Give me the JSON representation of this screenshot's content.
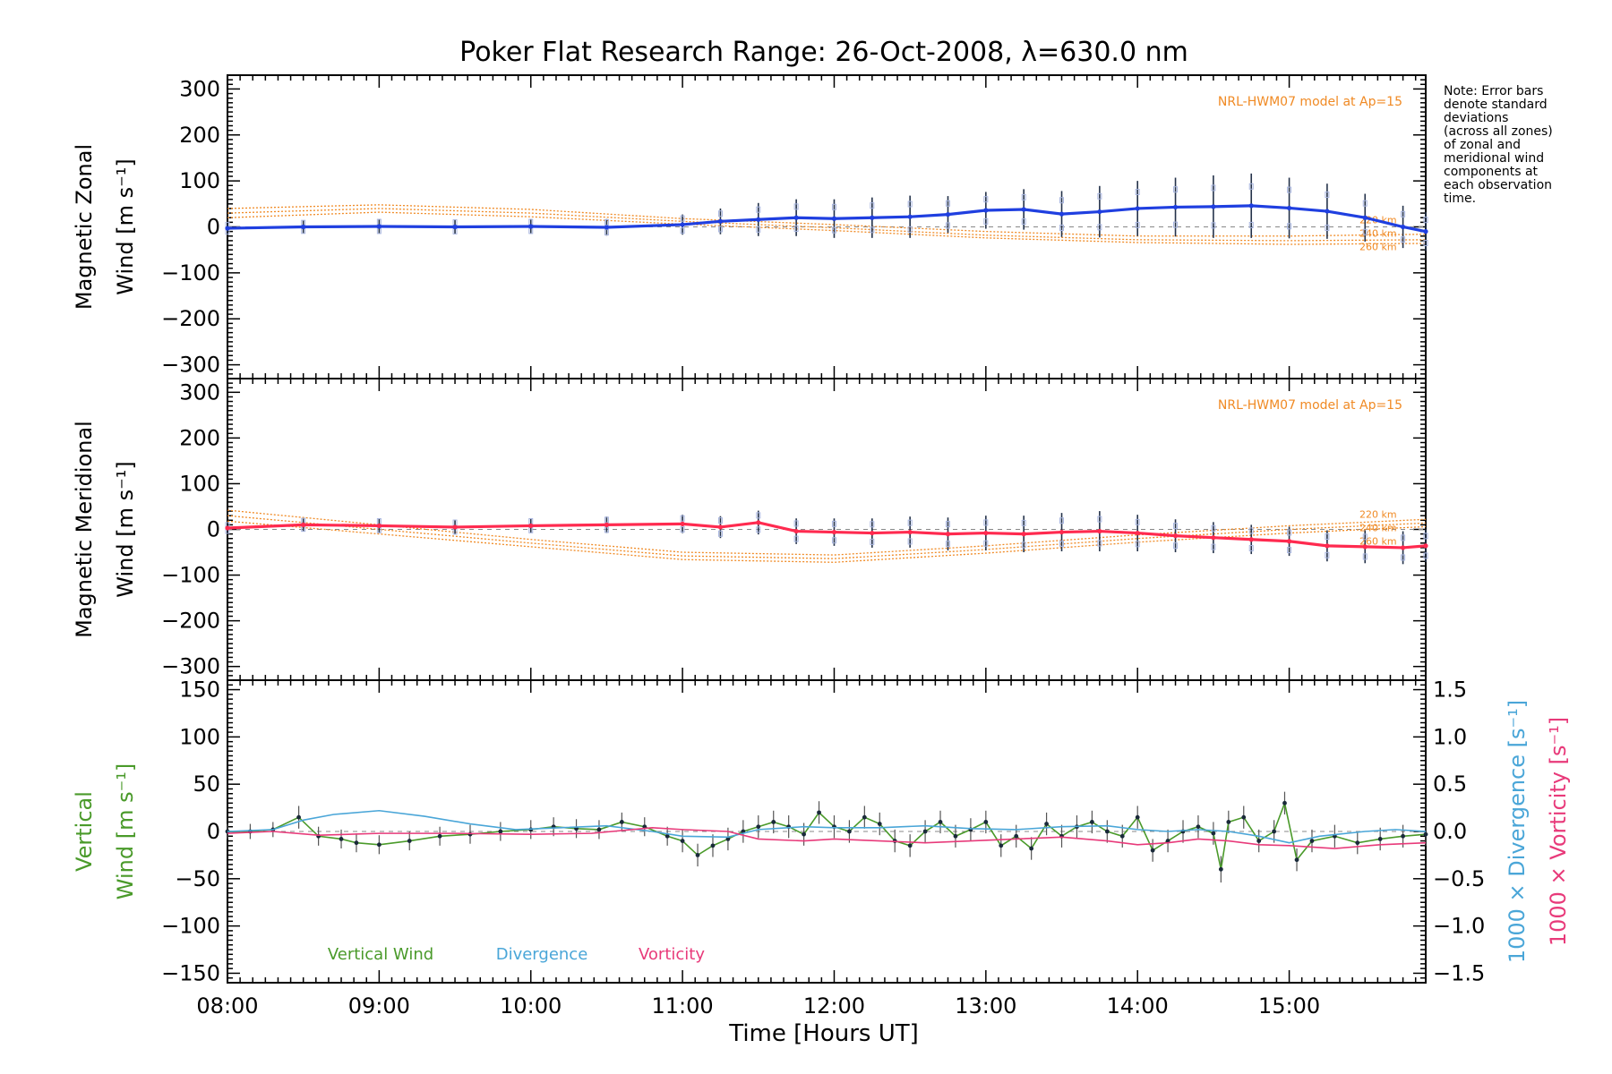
{
  "title": "Poker Flat Research Range: 26-Oct-2008, λ=630.0 nm",
  "colors": {
    "zonal": "#1f3fe0",
    "meridional": "#ff2a4f",
    "vertical": "#4a9a2a",
    "divergence": "#4aa6d8",
    "vorticity": "#e83a7a",
    "model": "#f08a24",
    "model_ci": "#f7c98f",
    "error_bar": "#24324a",
    "scatter": "#a9b6e0"
  },
  "note": [
    "Note: Error bars",
    "denote standard",
    "deviations",
    "(across all zones)",
    "of zonal and",
    "meridional wind",
    "components at",
    "each observation",
    "time."
  ],
  "x_axis": {
    "title": "Time [Hours UT]",
    "tick_labels": [
      "08:00",
      "09:00",
      "10:00",
      "11:00",
      "12:00",
      "13:00",
      "14:00",
      "15:00"
    ]
  },
  "chart_data": [
    {
      "type": "line",
      "panel": "zonal",
      "ylabel": [
        "Magnetic Zonal",
        "Wind [m s⁻¹]"
      ],
      "ylim": [
        -330,
        330
      ],
      "xlim": [
        8.0,
        15.9
      ],
      "y_ticks": [
        -300,
        -200,
        -100,
        0,
        100,
        200,
        300
      ],
      "y_tick_labels": [
        "−300",
        "−200",
        "−100",
        "0",
        "100",
        "200",
        "300"
      ],
      "model_label": "NRL-HWM07 model at Ap=15",
      "model_heights": [
        "220 km",
        "240 km",
        "260 km"
      ],
      "model_curves": [
        {
          "x": [
            8.0,
            9.0,
            10.0,
            11.0,
            12.0,
            13.0,
            14.0,
            15.0,
            15.9
          ],
          "y": [
            40,
            48,
            38,
            18,
            5,
            -10,
            -20,
            -20,
            -16
          ]
        },
        {
          "x": [
            8.0,
            9.0,
            10.0,
            11.0,
            12.0,
            13.0,
            14.0,
            15.0,
            15.9
          ],
          "y": [
            30,
            40,
            30,
            12,
            -2,
            -18,
            -28,
            -30,
            -28
          ]
        },
        {
          "x": [
            8.0,
            9.0,
            10.0,
            11.0,
            12.0,
            13.0,
            14.0,
            15.0,
            15.9
          ],
          "y": [
            20,
            32,
            22,
            6,
            -8,
            -24,
            -34,
            -38,
            -36
          ]
        }
      ],
      "series": [
        {
          "x": [
            8.0,
            8.5,
            9.0,
            9.5,
            10.0,
            10.5,
            11.0,
            11.25,
            11.5,
            11.75,
            12.0,
            12.25,
            12.5,
            12.75,
            13.0,
            13.25,
            13.5,
            13.75,
            14.0,
            14.25,
            14.5,
            14.75,
            15.0,
            15.25,
            15.5,
            15.75,
            15.9
          ],
          "y": [
            -3,
            0,
            1,
            0,
            1,
            -1,
            5,
            12,
            16,
            20,
            18,
            20,
            22,
            27,
            36,
            38,
            28,
            33,
            40,
            43,
            44,
            46,
            41,
            34,
            20,
            0,
            -10
          ],
          "errors": [
            12,
            14,
            16,
            16,
            16,
            18,
            22,
            28,
            36,
            40,
            42,
            44,
            46,
            40,
            40,
            44,
            50,
            56,
            60,
            64,
            68,
            70,
            66,
            60,
            52,
            46,
            42
          ]
        }
      ]
    },
    {
      "type": "line",
      "panel": "meridional",
      "ylabel": [
        "Magnetic Meridional",
        "Wind [m s⁻¹]"
      ],
      "ylim": [
        -330,
        330
      ],
      "xlim": [
        8.0,
        15.9
      ],
      "y_ticks": [
        -300,
        -200,
        -100,
        0,
        100,
        200,
        300
      ],
      "y_tick_labels": [
        "−300",
        "−200",
        "−100",
        "0",
        "100",
        "200",
        "300"
      ],
      "model_label": "NRL-HWM07 model at Ap=15",
      "model_heights": [
        "220 km",
        "240 km",
        "260 km"
      ],
      "model_curves": [
        {
          "x": [
            8.0,
            9.0,
            10.0,
            11.0,
            12.0,
            13.0,
            14.0,
            15.0,
            15.9
          ],
          "y": [
            42,
            10,
            -22,
            -50,
            -56,
            -36,
            -12,
            8,
            22
          ]
        },
        {
          "x": [
            8.0,
            9.0,
            10.0,
            11.0,
            12.0,
            13.0,
            14.0,
            15.0,
            15.9
          ],
          "y": [
            30,
            0,
            -30,
            -58,
            -64,
            -44,
            -20,
            0,
            14
          ]
        },
        {
          "x": [
            8.0,
            9.0,
            10.0,
            11.0,
            12.0,
            13.0,
            14.0,
            15.0,
            15.9
          ],
          "y": [
            18,
            -10,
            -38,
            -66,
            -72,
            -52,
            -28,
            -8,
            6
          ]
        }
      ],
      "series": [
        {
          "x": [
            8.0,
            8.5,
            9.0,
            9.5,
            10.0,
            10.5,
            11.0,
            11.25,
            11.5,
            11.75,
            12.0,
            12.25,
            12.5,
            12.75,
            13.0,
            13.25,
            13.5,
            13.75,
            14.0,
            14.25,
            14.5,
            14.75,
            15.0,
            15.25,
            15.5,
            15.75,
            15.9
          ],
          "y": [
            3,
            10,
            8,
            5,
            8,
            10,
            12,
            5,
            15,
            -4,
            -6,
            -8,
            -6,
            -10,
            -8,
            -10,
            -6,
            -4,
            -8,
            -14,
            -18,
            -22,
            -26,
            -36,
            -38,
            -40,
            -36
          ],
          "errors": [
            10,
            14,
            16,
            16,
            16,
            18,
            20,
            24,
            26,
            28,
            30,
            32,
            34,
            36,
            38,
            40,
            42,
            44,
            40,
            36,
            34,
            32,
            32,
            34,
            36,
            36,
            36
          ]
        }
      ]
    },
    {
      "type": "line",
      "panel": "vertical",
      "ylabel": [
        "Vertical",
        "Wind [m s⁻¹]"
      ],
      "ylim": [
        -160,
        160
      ],
      "xlim": [
        8.0,
        15.9
      ],
      "y_ticks": [
        -150,
        -100,
        -50,
        0,
        50,
        100,
        150
      ],
      "y_tick_labels": [
        "−150",
        "−100",
        "−50",
        "0",
        "50",
        "100",
        "150"
      ],
      "y2label": [
        "1000 × Divergence [s⁻¹]",
        "1000 × Vorticity [s⁻¹]"
      ],
      "y2lim": [
        -1.6,
        1.6
      ],
      "y2_ticks": [
        -1.5,
        -1.0,
        -0.5,
        0.0,
        0.5,
        1.0,
        1.5
      ],
      "y2_tick_labels": [
        "−1.5",
        "−1.0",
        "−0.5",
        "0.0",
        "0.5",
        "1.0",
        "1.5"
      ],
      "legend": [
        "Vertical Wind",
        "Divergence",
        "Vorticity"
      ],
      "series": [
        {
          "name": "Vertical Wind",
          "x": [
            8.0,
            8.15,
            8.3,
            8.47,
            8.6,
            8.75,
            8.85,
            9.0,
            9.2,
            9.4,
            9.6,
            9.8,
            10.0,
            10.15,
            10.3,
            10.45,
            10.6,
            10.75,
            10.9,
            11.0,
            11.1,
            11.2,
            11.3,
            11.4,
            11.5,
            11.6,
            11.7,
            11.8,
            11.9,
            12.0,
            12.1,
            12.2,
            12.3,
            12.4,
            12.5,
            12.6,
            12.7,
            12.8,
            12.9,
            13.0,
            13.1,
            13.2,
            13.3,
            13.4,
            13.5,
            13.6,
            13.7,
            13.8,
            13.9,
            14.0,
            14.1,
            14.2,
            14.3,
            14.4,
            14.5,
            14.55,
            14.6,
            14.7,
            14.8,
            14.9,
            14.97,
            15.05,
            15.15,
            15.3,
            15.45,
            15.6,
            15.75,
            15.9
          ],
          "y": [
            0,
            0,
            2,
            15,
            -5,
            -8,
            -12,
            -14,
            -10,
            -5,
            -3,
            0,
            2,
            5,
            3,
            2,
            10,
            5,
            -5,
            -10,
            -25,
            -15,
            -8,
            0,
            5,
            10,
            5,
            -3,
            20,
            5,
            0,
            15,
            8,
            -10,
            -15,
            0,
            10,
            -5,
            2,
            10,
            -15,
            -5,
            -18,
            8,
            -5,
            5,
            10,
            0,
            -5,
            15,
            -20,
            -10,
            0,
            5,
            -2,
            -40,
            10,
            15,
            -10,
            0,
            30,
            -30,
            -10,
            -5,
            -12,
            -8,
            -5,
            -3
          ],
          "errors": [
            8,
            8,
            8,
            12,
            10,
            10,
            10,
            10,
            10,
            10,
            10,
            10,
            10,
            10,
            10,
            10,
            10,
            10,
            10,
            12,
            12,
            12,
            12,
            12,
            12,
            12,
            12,
            12,
            12,
            12,
            12,
            12,
            12,
            12,
            12,
            12,
            12,
            12,
            12,
            12,
            12,
            12,
            12,
            12,
            12,
            12,
            12,
            12,
            12,
            12,
            12,
            12,
            12,
            12,
            12,
            14,
            12,
            12,
            12,
            12,
            12,
            12,
            12,
            12,
            12,
            12,
            12,
            12
          ]
        },
        {
          "name": "Divergence",
          "axis": "y2",
          "x": [
            8.0,
            8.3,
            8.5,
            8.7,
            9.0,
            9.3,
            9.6,
            9.9,
            10.2,
            10.5,
            10.8,
            11.0,
            11.3,
            11.5,
            11.8,
            12.0,
            12.3,
            12.6,
            12.9,
            13.2,
            13.5,
            13.8,
            14.0,
            14.2,
            14.4,
            14.6,
            14.8,
            15.0,
            15.2,
            15.5,
            15.7,
            15.9
          ],
          "y": [
            0.0,
            0.02,
            0.12,
            0.18,
            0.22,
            0.16,
            0.08,
            0.02,
            0.04,
            0.06,
            0.0,
            -0.05,
            -0.06,
            0.02,
            0.05,
            0.04,
            0.04,
            0.06,
            0.03,
            0.02,
            0.05,
            0.06,
            0.02,
            0.0,
            0.02,
            0.0,
            -0.05,
            -0.12,
            -0.05,
            0.0,
            0.02,
            0.0
          ]
        },
        {
          "name": "Vorticity",
          "axis": "y2",
          "x": [
            8.0,
            8.3,
            8.6,
            9.0,
            9.5,
            10.0,
            10.4,
            10.8,
            11.0,
            11.3,
            11.5,
            11.8,
            12.0,
            12.3,
            12.6,
            12.9,
            13.2,
            13.5,
            13.8,
            14.0,
            14.2,
            14.4,
            14.6,
            14.8,
            15.0,
            15.3,
            15.6,
            15.9
          ],
          "y": [
            -0.02,
            0.0,
            -0.04,
            -0.02,
            -0.02,
            -0.03,
            -0.02,
            0.04,
            0.02,
            0.0,
            -0.08,
            -0.1,
            -0.08,
            -0.1,
            -0.12,
            -0.1,
            -0.08,
            -0.06,
            -0.1,
            -0.14,
            -0.12,
            -0.08,
            -0.1,
            -0.14,
            -0.15,
            -0.18,
            -0.14,
            -0.12
          ]
        }
      ]
    }
  ]
}
